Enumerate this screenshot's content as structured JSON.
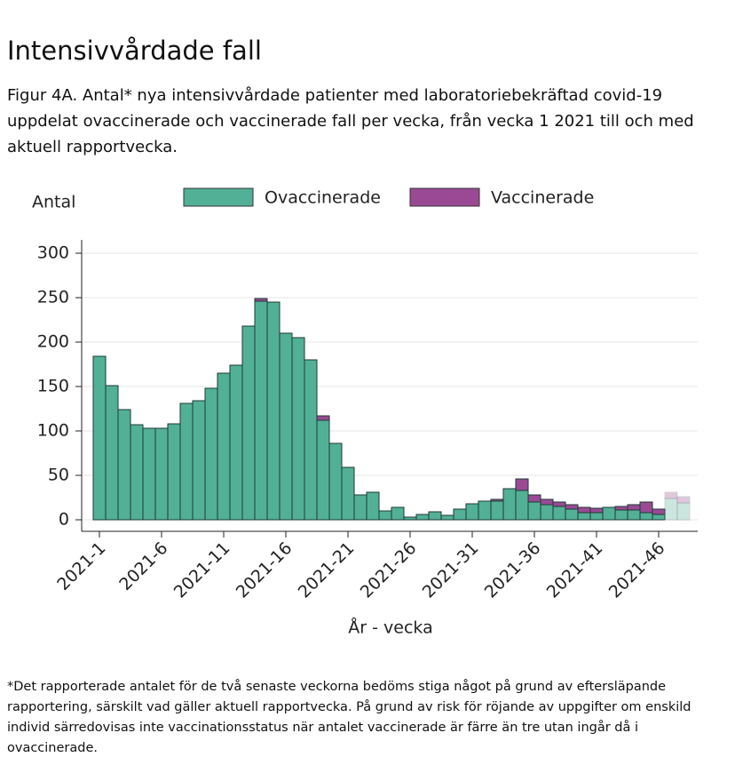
{
  "header": {
    "title": "Intensivvårdade fall",
    "subtitle": "Figur 4A. Antal* nya intensivvårdade patienter med laboratoriebekräftad covid-19 uppdelat ovaccinerade och vaccinerade fall per vecka, från vecka 1 2021 till och med aktuell rapportvecka."
  },
  "chart_data": {
    "type": "stacked-bar",
    "y_label": "Antal",
    "x_label": "År - vecka",
    "categories": [
      "2021-1",
      null,
      null,
      null,
      null,
      "2021-6",
      null,
      null,
      null,
      null,
      "2021-11",
      null,
      null,
      null,
      null,
      "2021-16",
      null,
      null,
      null,
      null,
      "2021-21",
      null,
      null,
      null,
      null,
      "2021-26",
      null,
      null,
      null,
      null,
      "2021-31",
      null,
      null,
      null,
      null,
      "2021-36",
      null,
      null,
      null,
      null,
      "2021-41",
      null,
      null,
      null,
      null,
      "2021-46",
      null,
      null
    ],
    "series": [
      {
        "name": "Ovaccinerade",
        "color": "#52b097",
        "values": [
          184,
          151,
          124,
          107,
          103,
          103,
          108,
          131,
          134,
          148,
          165,
          174,
          218,
          246,
          245,
          210,
          205,
          180,
          112,
          86,
          59,
          28,
          31,
          10,
          14,
          3,
          6,
          9,
          5,
          12,
          18,
          21,
          21,
          35,
          33,
          20,
          17,
          15,
          12,
          8,
          8,
          14,
          11,
          11,
          8,
          6,
          24,
          19
        ]
      },
      {
        "name": "Vaccinerade",
        "color": "#9a4a94",
        "values": [
          0,
          0,
          0,
          0,
          0,
          0,
          0,
          0,
          0,
          0,
          0,
          0,
          0,
          3,
          0,
          0,
          0,
          0,
          5,
          0,
          0,
          0,
          0,
          0,
          0,
          0,
          0,
          0,
          0,
          0,
          0,
          0,
          2,
          0,
          13,
          8,
          6,
          5,
          5,
          6,
          5,
          0,
          4,
          6,
          12,
          6,
          7,
          7
        ]
      }
    ],
    "preliminary_weeks": 2,
    "ylim": [
      0,
      300
    ],
    "yticks": [
      0,
      50,
      100,
      150,
      200,
      250,
      300
    ],
    "grid": true,
    "legend": "top"
  },
  "footnote": "*Det rapporterade antalet för de två senaste veckorna bedöms stiga något på grund av eftersläpande rapportering, särskilt vad gäller aktuell rapportvecka. På grund av risk för röjande av uppgifter om enskild individ särredovisas inte vaccinationsstatus när antalet vaccinerade är färre än tre utan ingår då i ovaccinerade."
}
